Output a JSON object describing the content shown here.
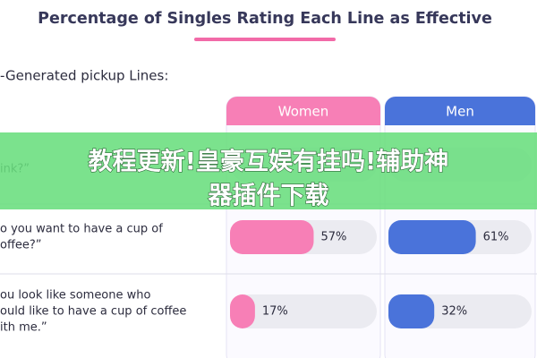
{
  "chart_data": {
    "type": "bar",
    "title": "Percentage of Singles Rating Each Line as Effective",
    "subtitle": "-Generated pickup Lines:",
    "categories": [
      [
        "ink?”"
      ],
      [
        "o you want to have a cup of",
        "offee?”"
      ],
      [
        "ou look like someone who",
        "ould like to have a cup of coffee",
        "ith me.”"
      ]
    ],
    "xlim": [
      0,
      100
    ],
    "series": [
      {
        "name": "Women",
        "color": "#f77fb6",
        "values": [
          null,
          57,
          17
        ],
        "value_labels": [
          null,
          "57%",
          "17%"
        ]
      },
      {
        "name": "Men",
        "color": "#4a73da",
        "values": [
          null,
          61,
          32
        ],
        "value_labels": [
          null,
          "61%",
          "32%"
        ]
      }
    ]
  },
  "overlay_banner": [
    "教程更新!皇豪互娱有挂吗!辅助神",
    "器插件下载"
  ]
}
